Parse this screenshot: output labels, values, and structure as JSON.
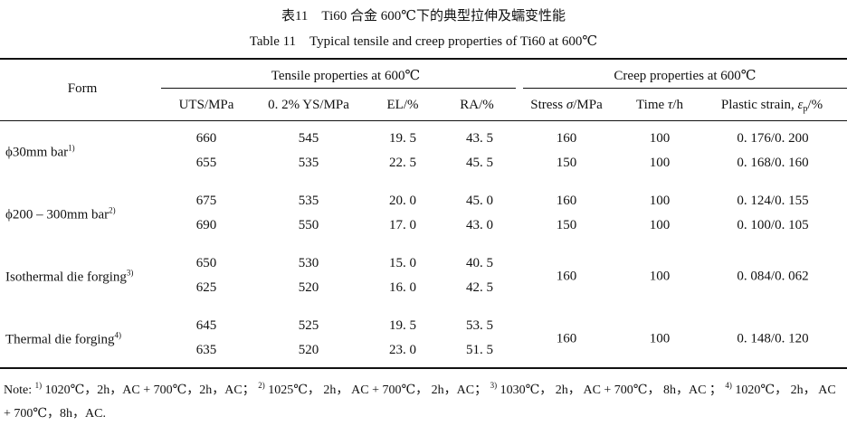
{
  "caption": {
    "cn": "表11　Ti60 合金 600℃下的典型拉伸及蠕变性能",
    "en": "Table 11　Typical tensile and creep properties of Ti60 at 600℃"
  },
  "header": {
    "form": "Form",
    "tensile_group": "Tensile properties at 600℃",
    "creep_group": "Creep properties at 600℃",
    "uts": "UTS/MPa",
    "ys": "0. 2% YS/MPa",
    "el": "EL/%",
    "ra": "RA/%",
    "stress_pre": "Stress ",
    "stress_sym": "σ",
    "stress_post": "/MPa",
    "time_pre": "Time ",
    "time_sym": "τ",
    "time_post": "/h",
    "plastic_pre": "Plastic strain,",
    "plastic_sym": "ε",
    "plastic_sub": "p",
    "plastic_post": "/%"
  },
  "rows": [
    {
      "form": "ϕ30mm bar",
      "sup": "1)",
      "uts": [
        "660",
        "655"
      ],
      "ys": [
        "545",
        "535"
      ],
      "el": [
        "19. 5",
        "22. 5"
      ],
      "ra": [
        "43. 5",
        "45. 5"
      ],
      "stress": [
        "160",
        "150"
      ],
      "time": [
        "100",
        "100"
      ],
      "strain": [
        "0. 176/0. 200",
        "0. 168/0. 160"
      ]
    },
    {
      "form": "ϕ200 – 300mm bar",
      "sup": "2)",
      "uts": [
        "675",
        "690"
      ],
      "ys": [
        "535",
        "550"
      ],
      "el": [
        "20. 0",
        "17. 0"
      ],
      "ra": [
        "45. 0",
        "43. 0"
      ],
      "stress": [
        "160",
        "150"
      ],
      "time": [
        "100",
        "100"
      ],
      "strain": [
        "0. 124/0. 155",
        "0. 100/0. 105"
      ]
    },
    {
      "form": "Isothermal die forging",
      "sup": "3)",
      "uts": [
        "650",
        "625"
      ],
      "ys": [
        "530",
        "520"
      ],
      "el": [
        "15. 0",
        "16. 0"
      ],
      "ra": [
        "40. 5",
        "42. 5"
      ],
      "stress": [
        "160"
      ],
      "time": [
        "100"
      ],
      "strain": [
        "0. 084/0. 062"
      ]
    },
    {
      "form": "Thermal die forging",
      "sup": "4)",
      "uts": [
        "645",
        "635"
      ],
      "ys": [
        "525",
        "520"
      ],
      "el": [
        "19. 5",
        "23. 0"
      ],
      "ra": [
        "53. 5",
        "51. 5"
      ],
      "stress": [
        "160"
      ],
      "time": [
        "100"
      ],
      "strain": [
        "0. 148/0. 120"
      ]
    }
  ],
  "note": {
    "label": "Note:",
    "items": [
      {
        "sup": "1)",
        "text": " 1020℃，2h，AC + 700℃，2h，AC；"
      },
      {
        "sup": "2)",
        "text": " 1025℃， 2h， AC + 700℃， 2h，AC；"
      },
      {
        "sup": "3)",
        "text": " 1030℃， 2h， AC + 700℃， 8h，AC ；"
      },
      {
        "sup": "4)",
        "text": " 1020℃， 2h， AC + 700℃，8h，AC."
      }
    ]
  }
}
